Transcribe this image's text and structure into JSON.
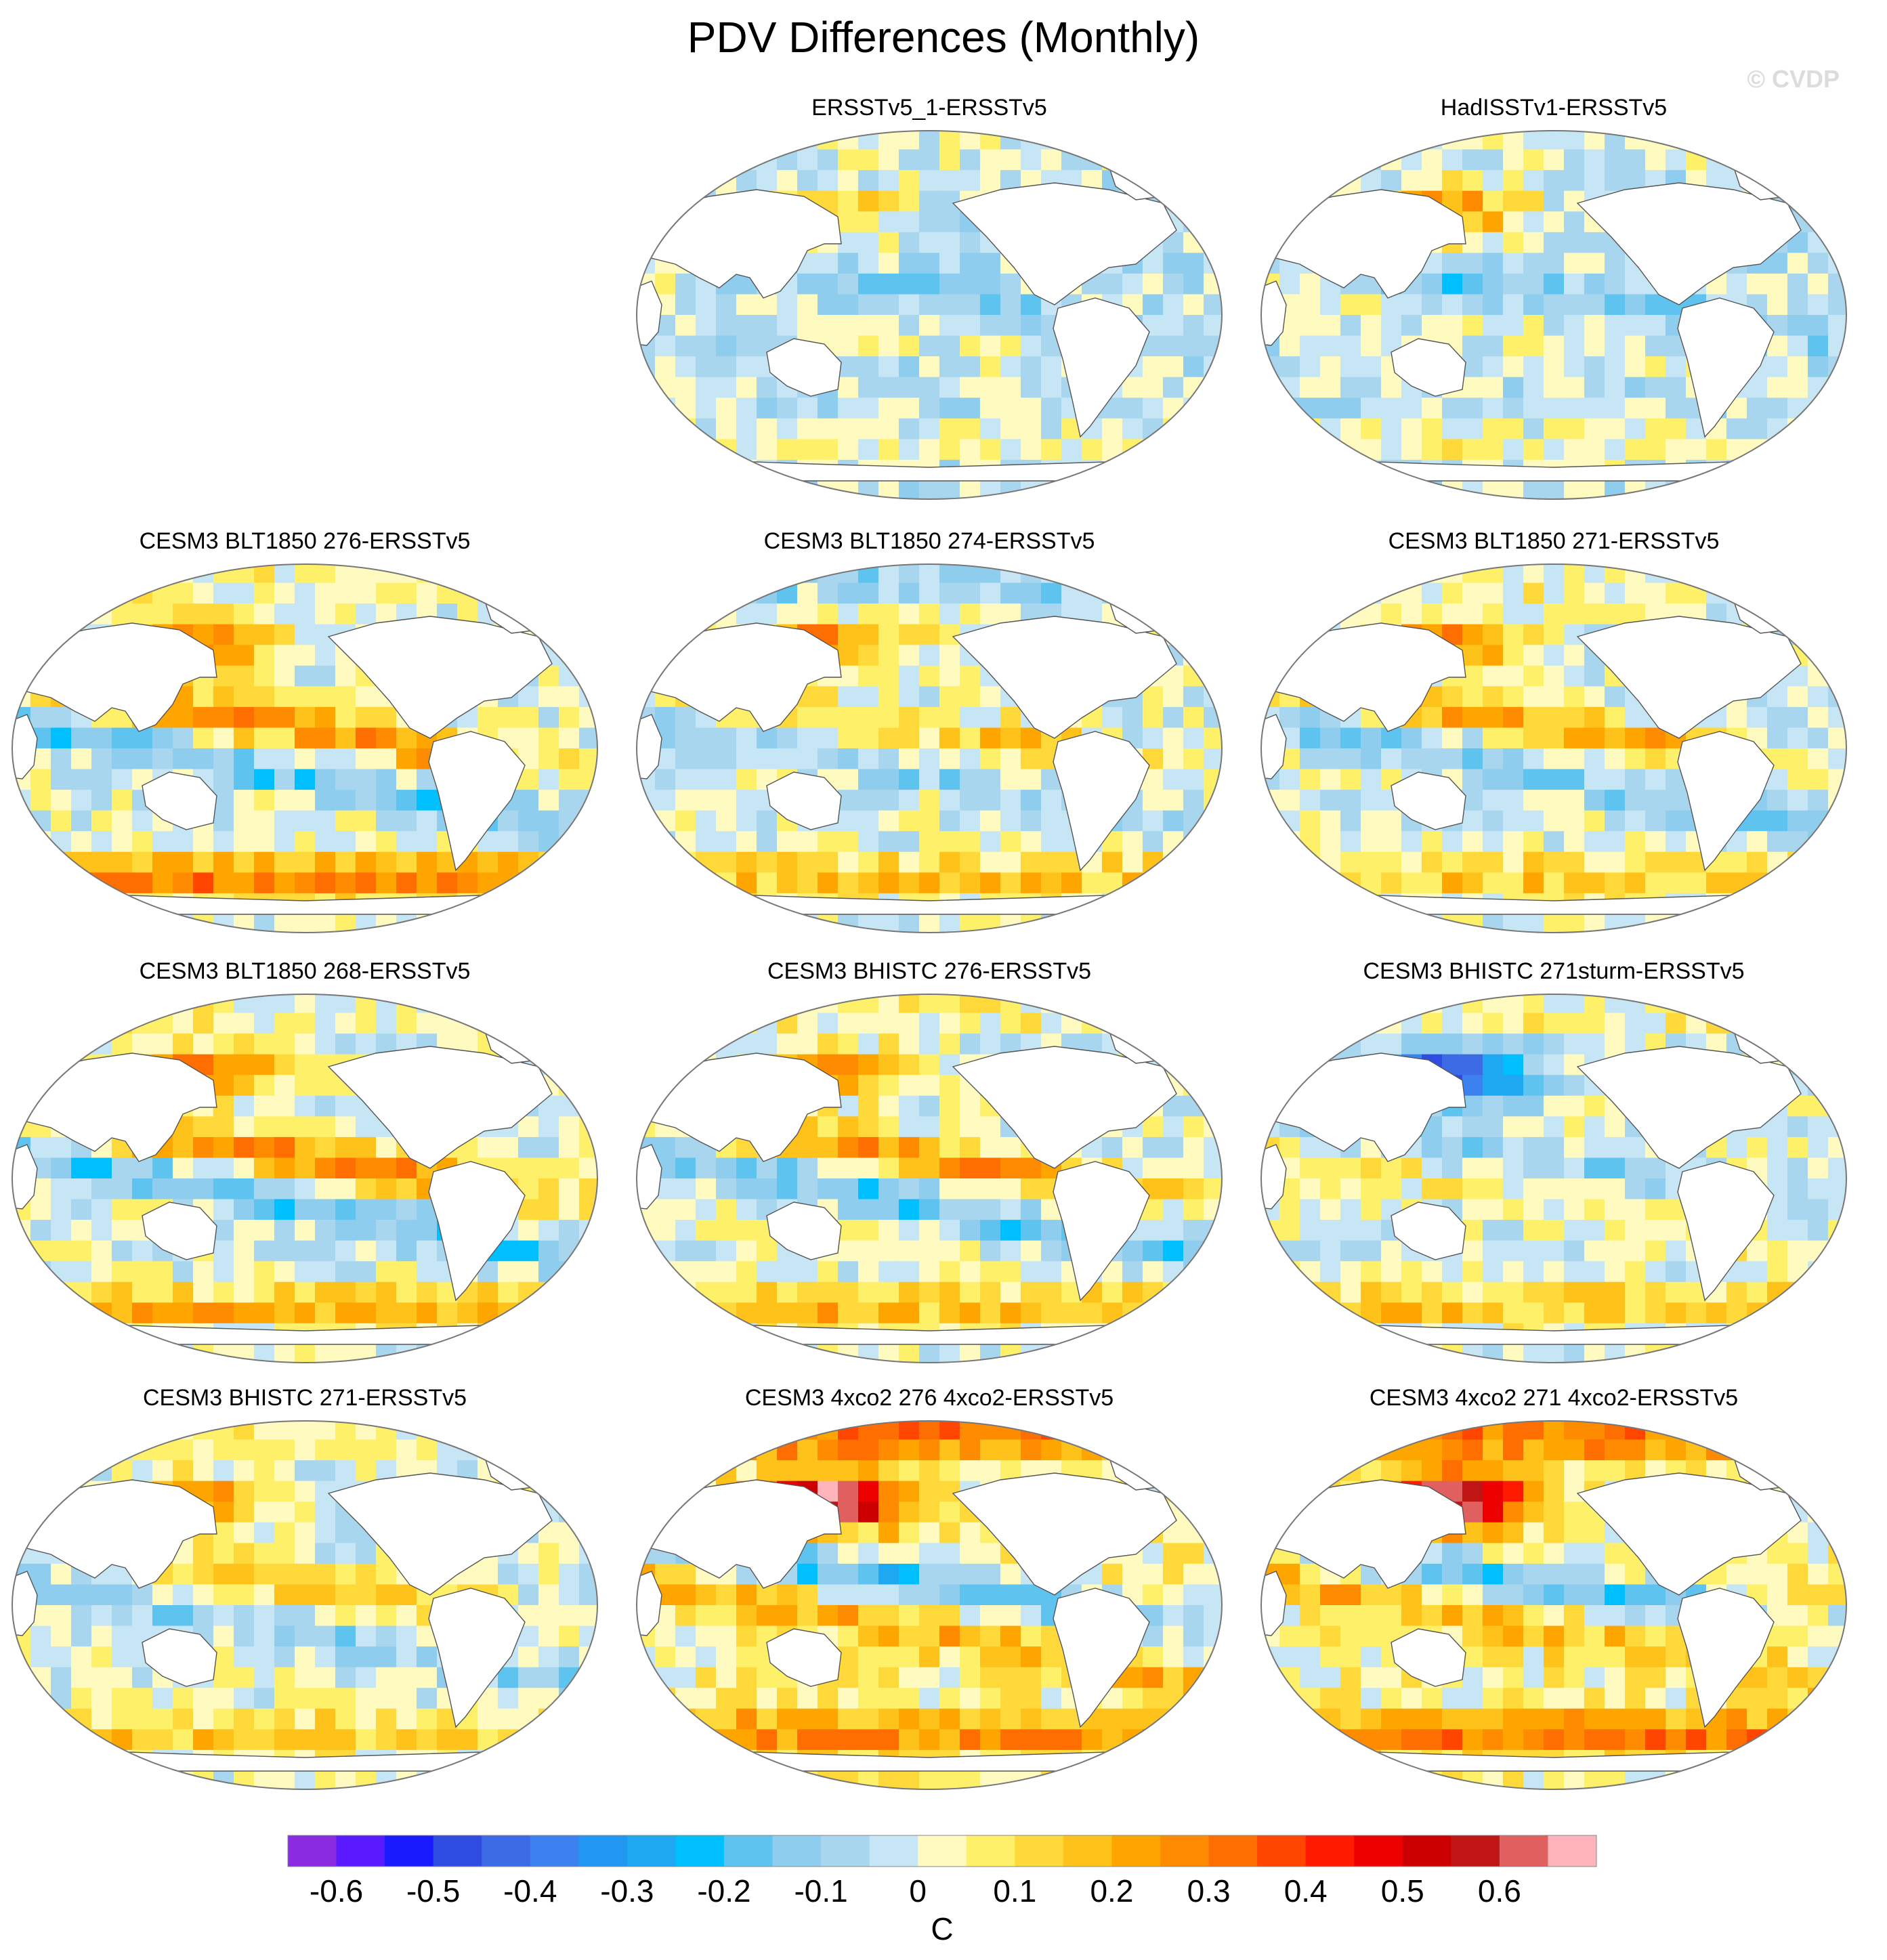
{
  "title": "PDV Differences (Monthly)",
  "watermark": "© CVDP",
  "chart_data": {
    "type": "heatmap",
    "projection": "Robinson-style global map (Pacific centered)",
    "variable": "PDV SST regression difference",
    "units": "C",
    "panels": [
      {
        "title": "ERSSTv5_1-ERSSTv5",
        "pattern": "weak",
        "north_pacific": 0.22,
        "tropical_band": -0.08,
        "southern_band": 0.05,
        "arctic": 0.05
      },
      {
        "title": "HadISSTv1-ERSSTv5",
        "pattern": "weak",
        "north_pacific": 0.32,
        "tropical_band": -0.1,
        "southern_band": 0.08,
        "arctic": 0.05
      },
      {
        "title": "CESM3 BLT1850 276-ERSSTv5",
        "pattern": "banded",
        "north_pacific": 0.36,
        "tropical_band": 0.28,
        "southern_band": 0.3,
        "arctic": 0.06
      },
      {
        "title": "CESM3 BLT1850 274-ERSSTv5",
        "pattern": "banded",
        "north_pacific": 0.3,
        "tropical_band": 0.14,
        "southern_band": 0.16,
        "arctic": -0.12
      },
      {
        "title": "CESM3 BLT1850 271-ERSSTv5",
        "pattern": "banded",
        "north_pacific": 0.28,
        "tropical_band": 0.22,
        "southern_band": 0.14,
        "arctic": 0.05
      },
      {
        "title": "CESM3 BLT1850 268-ERSSTv5",
        "pattern": "banded",
        "north_pacific": 0.32,
        "tropical_band": 0.28,
        "southern_band": 0.2,
        "arctic": 0.05
      },
      {
        "title": "CESM3 BHISTC 276-ERSSTv5",
        "pattern": "banded",
        "north_pacific": 0.3,
        "tropical_band": 0.26,
        "southern_band": 0.18,
        "arctic": 0.05
      },
      {
        "title": "CESM3 BHISTC 271sturm-ERSSTv5",
        "pattern": "banded",
        "north_pacific": -0.5,
        "tropical_band": -0.1,
        "southern_band": 0.14,
        "arctic": 0.05
      },
      {
        "title": "CESM3 BHISTC 271-ERSSTv5",
        "pattern": "banded",
        "north_pacific": 0.26,
        "tropical_band": 0.16,
        "southern_band": 0.14,
        "arctic": 0.05
      },
      {
        "title": "CESM3 4xco2 276 4xco2-ERSSTv5",
        "pattern": "warm",
        "north_pacific": 0.7,
        "tropical_band": -0.25,
        "southern_band": 0.22,
        "arctic": 0.3
      },
      {
        "title": "CESM3 4xco2 271 4xco2-ERSSTv5",
        "pattern": "warm",
        "north_pacific": 0.7,
        "tropical_band": -0.22,
        "southern_band": 0.24,
        "arctic": 0.3
      }
    ],
    "colorbar": {
      "label": "C",
      "levels": [
        -0.65,
        -0.6,
        -0.55,
        -0.5,
        -0.45,
        -0.4,
        -0.35,
        -0.3,
        -0.25,
        -0.2,
        -0.15,
        -0.1,
        -0.05,
        0,
        0.05,
        0.1,
        0.15,
        0.2,
        0.25,
        0.3,
        0.35,
        0.4,
        0.45,
        0.5,
        0.55,
        0.6,
        0.65
      ],
      "tick_labels": [
        "-0.6",
        "-0.5",
        "-0.4",
        "-0.3",
        "-0.2",
        "-0.1",
        "0",
        "0.1",
        "0.2",
        "0.3",
        "0.4",
        "0.5",
        "0.6"
      ],
      "colors": [
        "#8a2be2",
        "#5a1aff",
        "#1a1aff",
        "#2e4de0",
        "#3d6be6",
        "#3b82f0",
        "#2196f3",
        "#1ea8f2",
        "#00bfff",
        "#5fc3f0",
        "#8fcdee",
        "#a9d6ef",
        "#c6e6f5",
        "#fffac0",
        "#fff06a",
        "#ffd93a",
        "#ffc21a",
        "#ffa500",
        "#ff8c00",
        "#ff6e00",
        "#ff4500",
        "#ff1a00",
        "#ec0000",
        "#cc0000",
        "#c01515",
        "#e06060",
        "#ffb3ba"
      ]
    }
  }
}
